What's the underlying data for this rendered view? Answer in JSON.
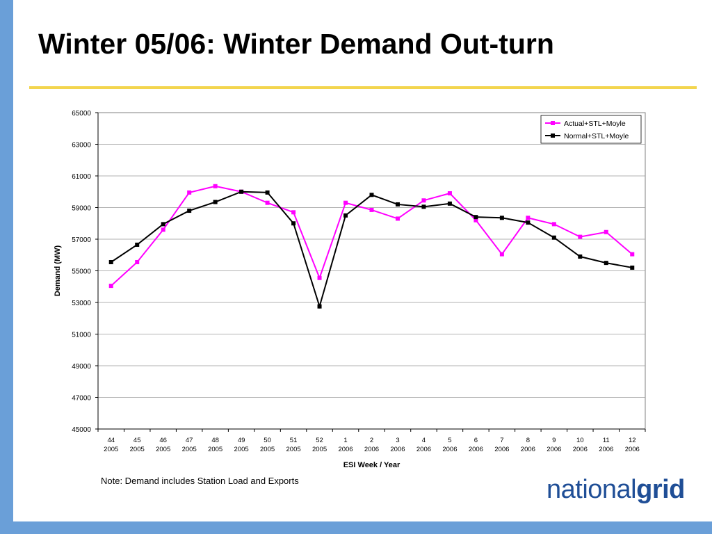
{
  "slide": {
    "title": "Winter 05/06: Winter Demand Out-turn",
    "note": "Note: Demand includes Station Load and Exports",
    "logo": {
      "light": "national",
      "bold": "grid"
    }
  },
  "chart_data": {
    "type": "line",
    "xlabel": "ESI Week / Year",
    "ylabel": "Demand (MW)",
    "ylim": [
      45000,
      65000
    ],
    "yticks": [
      45000,
      47000,
      49000,
      51000,
      53000,
      55000,
      57000,
      59000,
      61000,
      63000,
      65000
    ],
    "x": [
      {
        "week": "44",
        "year": "2005"
      },
      {
        "week": "45",
        "year": "2005"
      },
      {
        "week": "46",
        "year": "2005"
      },
      {
        "week": "47",
        "year": "2005"
      },
      {
        "week": "48",
        "year": "2005"
      },
      {
        "week": "49",
        "year": "2005"
      },
      {
        "week": "50",
        "year": "2005"
      },
      {
        "week": "51",
        "year": "2005"
      },
      {
        "week": "52",
        "year": "2005"
      },
      {
        "week": "1",
        "year": "2006"
      },
      {
        "week": "2",
        "year": "2006"
      },
      {
        "week": "3",
        "year": "2006"
      },
      {
        "week": "4",
        "year": "2006"
      },
      {
        "week": "5",
        "year": "2006"
      },
      {
        "week": "6",
        "year": "2006"
      },
      {
        "week": "7",
        "year": "2006"
      },
      {
        "week": "8",
        "year": "2006"
      },
      {
        "week": "9",
        "year": "2006"
      },
      {
        "week": "10",
        "year": "2006"
      },
      {
        "week": "11",
        "year": "2006"
      },
      {
        "week": "12",
        "year": "2006"
      }
    ],
    "series": [
      {
        "name": "Actual+STL+Moyle",
        "color": "#ff00ff",
        "values": [
          54050,
          55550,
          57600,
          59950,
          60350,
          60000,
          59300,
          58700,
          54550,
          59300,
          58850,
          58300,
          59450,
          59900,
          58200,
          56050,
          58350,
          57950,
          57150,
          57450,
          56050
        ]
      },
      {
        "name": "Normal+STL+Moyle",
        "color": "#000000",
        "values": [
          55550,
          56650,
          57950,
          58800,
          59350,
          60000,
          59950,
          58000,
          52750,
          58500,
          59800,
          59200,
          59050,
          59250,
          58400,
          58350,
          58050,
          57100,
          55900,
          55500,
          55200
        ]
      }
    ],
    "grid": true,
    "legend": "top-right"
  }
}
